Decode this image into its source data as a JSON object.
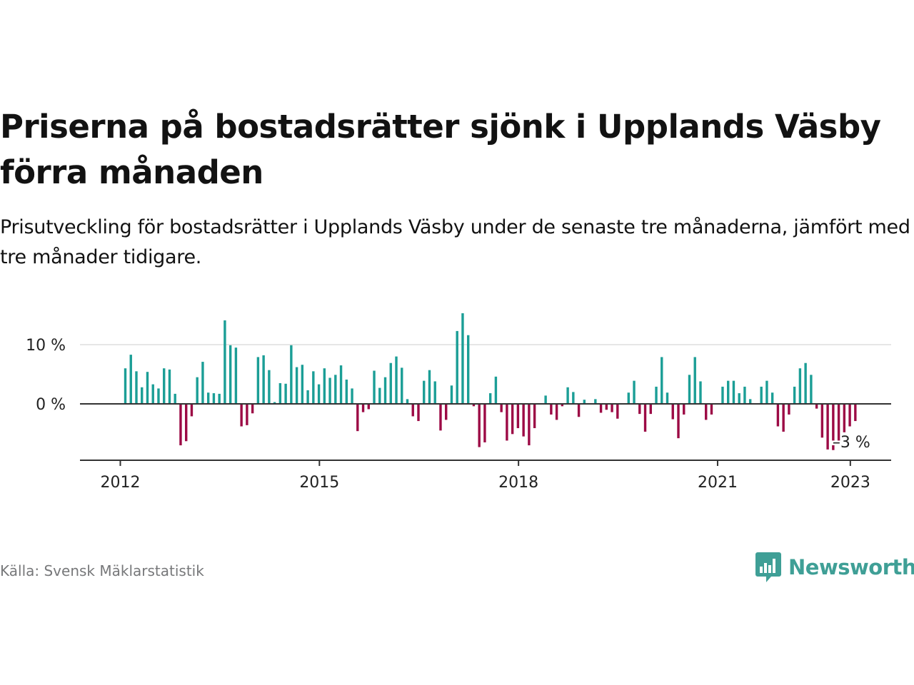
{
  "title": "Priserna på bostadsrätter sjönk i Upplands Väsby förra månaden",
  "subtitle": "Prisutveckling för bostadsrätter i Upplands Väsby under de senaste tre månaderna, jämfört med tre månader tidigare.",
  "source": "Källa: Svensk Mäklarstatistik",
  "logo": {
    "text": "Newsworthy",
    "icon": "bar-chart-speech-bubble-icon"
  },
  "colors": {
    "positive": "#1b9e96",
    "negative": "#9c0a45",
    "logo": "#3f9f96"
  },
  "chart_data": {
    "type": "bar",
    "x_start": "2012-01",
    "frequency": "monthly",
    "ylim": [
      -9,
      15.5
    ],
    "grid": true,
    "y_ticks": [
      {
        "value": 10,
        "label": "10 %"
      },
      {
        "value": 0,
        "label": "0 %"
      }
    ],
    "x_ticks": [
      {
        "date": "2012-01",
        "label": "2012"
      },
      {
        "date": "2015-01",
        "label": "2015"
      },
      {
        "date": "2018-01",
        "label": "2018"
      },
      {
        "date": "2021-01",
        "label": "2021"
      },
      {
        "date": "2023-01",
        "label": "2023"
      }
    ],
    "values": [
      6.0,
      8.3,
      5.5,
      2.8,
      5.4,
      3.3,
      2.6,
      6.0,
      5.8,
      1.7,
      -7.0,
      -6.3,
      -2.1,
      4.5,
      7.1,
      1.9,
      1.8,
      1.7,
      14.1,
      9.9,
      9.5,
      -3.8,
      -3.6,
      -1.6,
      7.9,
      8.2,
      5.7,
      0.3,
      3.5,
      3.4,
      9.9,
      6.2,
      6.6,
      2.3,
      5.5,
      3.3,
      6.0,
      4.4,
      4.9,
      6.5,
      4.1,
      2.6,
      -4.6,
      -1.4,
      -0.9,
      5.6,
      2.7,
      4.5,
      6.9,
      8.0,
      6.1,
      0.8,
      -2.1,
      -2.9,
      3.9,
      5.7,
      3.8,
      -4.5,
      -2.7,
      3.1,
      12.3,
      15.3,
      11.6,
      -0.4,
      -7.3,
      -6.5,
      1.8,
      4.6,
      -1.4,
      -6.2,
      -5.1,
      -4.1,
      -5.5,
      -7.0,
      -4.1,
      0,
      1.4,
      -1.8,
      -2.7,
      -0.4,
      2.8,
      2.0,
      -2.2,
      0.7,
      0,
      0.8,
      -1.5,
      -1.0,
      -1.4,
      -2.5,
      0,
      1.9,
      3.9,
      -1.7,
      -4.7,
      -1.7,
      2.9,
      7.9,
      1.9,
      -2.6,
      -5.8,
      -1.8,
      4.9,
      7.9,
      3.8,
      -2.7,
      -1.8,
      0,
      2.9,
      3.9,
      3.9,
      1.8,
      2.9,
      0.8,
      0,
      2.9,
      3.9,
      1.9,
      -3.8,
      -4.7,
      -1.8,
      2.9,
      6.0,
      6.9,
      4.9,
      -0.8,
      -5.7,
      -7.7,
      -7.8,
      -6.6,
      -4.8,
      -3.8,
      -2.9
    ],
    "annotations": [
      {
        "date": "2023-01",
        "label": "–3 %"
      }
    ]
  }
}
